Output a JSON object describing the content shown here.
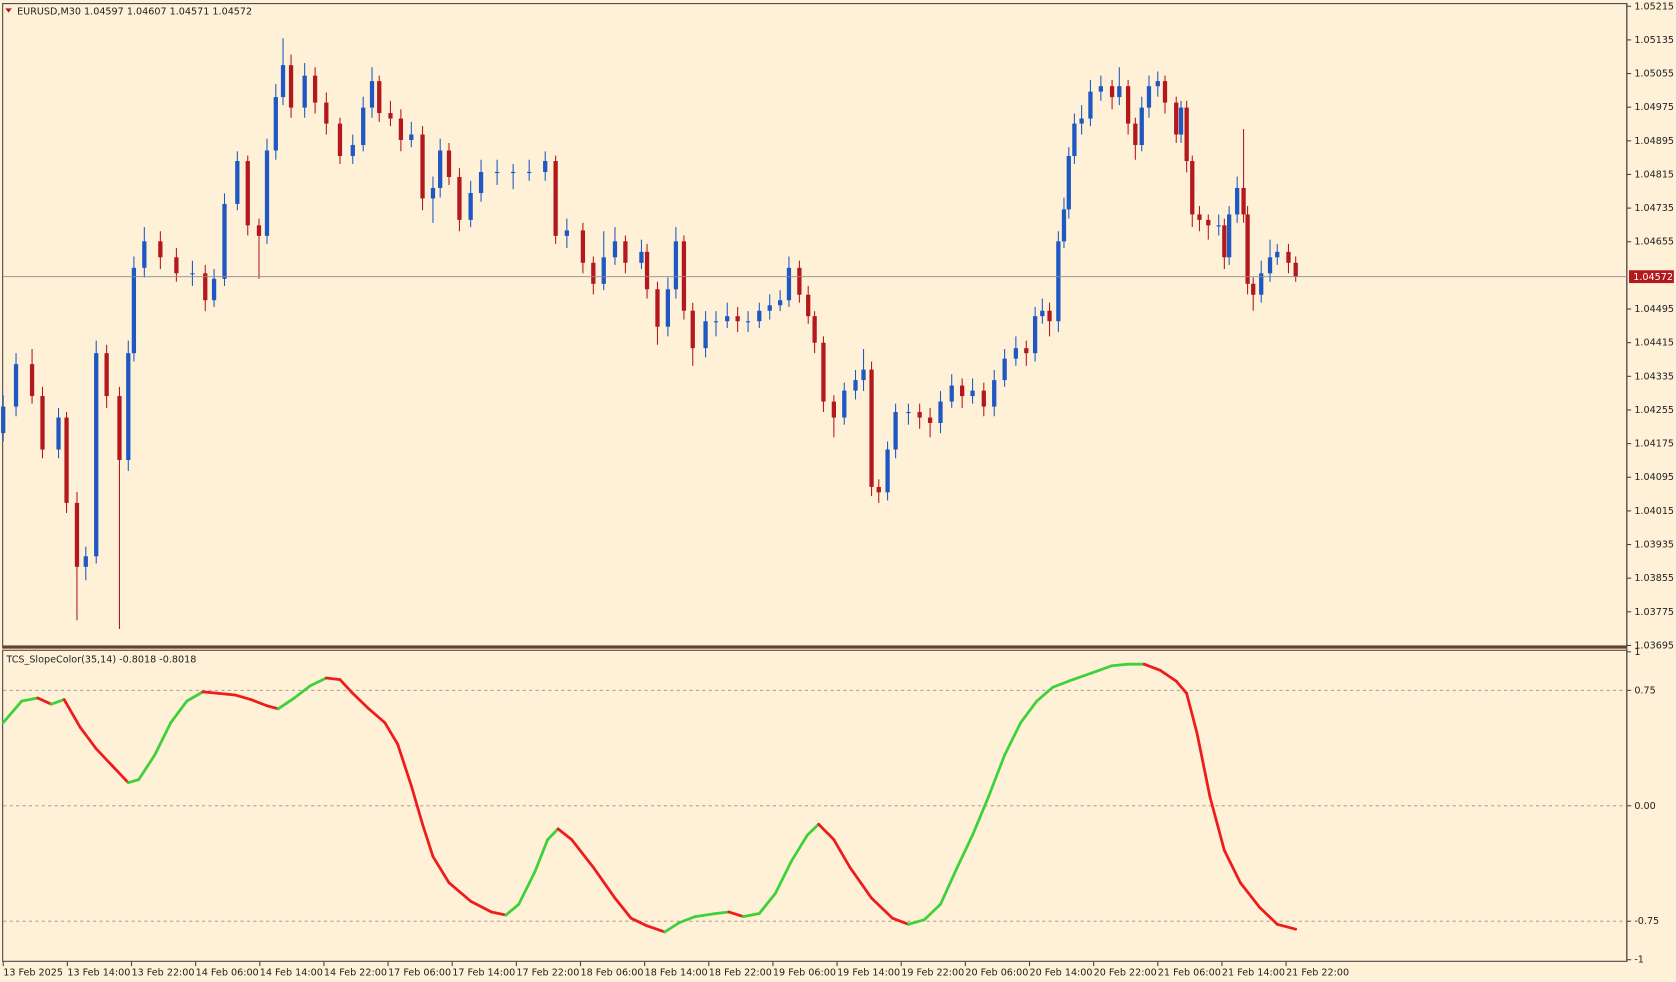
{
  "chart_data": [
    {
      "type": "candlestick",
      "title": "EURUSD,M30  1.04597 1.04607 1.04571 1.04572",
      "up_color": "#1f57c3",
      "down_color": "#b3181d",
      "current_price": 1.04572,
      "xlim": [
        0,
        202.5
      ],
      "xticks": [
        {
          "value": 0,
          "label": "13 Feb 2025"
        },
        {
          "value": 8,
          "label": "13 Feb 14:00"
        },
        {
          "value": 16,
          "label": "13 Feb 22:00"
        },
        {
          "value": 24,
          "label": "14 Feb 06:00"
        },
        {
          "value": 32,
          "label": "14 Feb 14:00"
        },
        {
          "value": 40,
          "label": "14 Feb 22:00"
        },
        {
          "value": 48,
          "label": "17 Feb 06:00"
        },
        {
          "value": 56,
          "label": "17 Feb 14:00"
        },
        {
          "value": 64,
          "label": "17 Feb 22:00"
        },
        {
          "value": 72,
          "label": "18 Feb 06:00"
        },
        {
          "value": 80,
          "label": "18 Feb 14:00"
        },
        {
          "value": 88,
          "label": "18 Feb 22:00"
        },
        {
          "value": 96,
          "label": "19 Feb 06:00"
        },
        {
          "value": 104,
          "label": "19 Feb 14:00"
        },
        {
          "value": 112,
          "label": "19 Feb 22:00"
        },
        {
          "value": 120,
          "label": "20 Feb 06:00"
        },
        {
          "value": 128,
          "label": "20 Feb 14:00"
        },
        {
          "value": 136,
          "label": "20 Feb 22:00"
        },
        {
          "value": 144,
          "label": "21 Feb 06:00"
        },
        {
          "value": 152,
          "label": "21 Feb 14:00"
        },
        {
          "value": 160,
          "label": "21 Feb 22:00"
        }
      ],
      "ylim": [
        1.03695,
        1.05215
      ],
      "yticks": [
        1.05215,
        1.05135,
        1.05055,
        1.04975,
        1.04895,
        1.04815,
        1.04735,
        1.04655,
        1.04495,
        1.04415,
        1.04335,
        1.04255,
        1.04175,
        1.04095,
        1.04015,
        1.03935,
        1.03855,
        1.03775,
        1.03695
      ],
      "x": [
        0,
        1.6,
        3.6,
        4.9,
        6.9,
        7.9,
        9.2,
        10.3,
        11.6,
        12.9,
        14.5,
        15.6,
        16.3,
        17.6,
        19.6,
        21.6,
        23.6,
        25.2,
        26.3,
        27.6,
        29.2,
        30.5,
        31.9,
        32.9,
        34,
        34.9,
        35.9,
        37.6,
        38.9,
        40.3,
        42,
        43.6,
        44.9,
        46,
        46.9,
        48.3,
        49.6,
        50.9,
        52.3,
        53.6,
        54.5,
        55.6,
        56.9,
        58.3,
        59.6,
        61.6,
        63.6,
        65.6,
        67.6,
        68.9,
        70.3,
        72.3,
        73.6,
        74.9,
        76.3,
        77.6,
        79.6,
        80.3,
        81.6,
        82.9,
        83.9,
        84.9,
        86,
        87.6,
        88.9,
        90.3,
        91.6,
        92.9,
        94.3,
        95.6,
        96.9,
        98,
        99.3,
        100.4,
        101.2,
        102.3,
        103.6,
        104.9,
        106.3,
        107.3,
        108.3,
        109.2,
        110.3,
        111.3,
        112.9,
        114.3,
        115.6,
        116.9,
        118.3,
        119.6,
        120.9,
        122.3,
        123.6,
        124.9,
        126.3,
        127.6,
        128.7,
        129.6,
        130.5,
        131.6,
        132.3,
        132.9,
        133.6,
        134.5,
        135.6,
        136.9,
        138.3,
        139.2,
        140.3,
        141.2,
        142,
        142.9,
        144,
        144.9,
        146.3,
        146.9,
        147.6,
        148.3,
        149.2,
        150.3,
        151.6,
        152.3,
        152.9,
        153.9,
        154.7,
        155.2,
        155.9,
        156.9,
        158,
        158.9,
        160.3,
        161.2
      ],
      "ohlc": [
        [
          1.042,
          1.0429,
          1.0418,
          1.04263
        ],
        [
          1.04263,
          1.0439,
          1.0424,
          1.04364
        ],
        [
          1.04364,
          1.044,
          1.0427,
          1.04288
        ],
        [
          1.04288,
          1.0431,
          1.0414,
          1.04161
        ],
        [
          1.04161,
          1.0426,
          1.0414,
          1.04237
        ],
        [
          1.04237,
          1.0425,
          1.0401,
          1.04034
        ],
        [
          1.04034,
          1.0406,
          1.03755,
          1.03882
        ],
        [
          1.03882,
          1.0393,
          1.0385,
          1.03907
        ],
        [
          1.03907,
          1.0442,
          1.0389,
          1.0439
        ],
        [
          1.0439,
          1.0441,
          1.0426,
          1.04288
        ],
        [
          1.04288,
          1.0431,
          1.03734,
          1.04136
        ],
        [
          1.04136,
          1.0442,
          1.0411,
          1.0439
        ],
        [
          1.0439,
          1.0462,
          1.0437,
          1.04593
        ],
        [
          1.04593,
          1.0469,
          1.0457,
          1.04656
        ],
        [
          1.04656,
          1.0468,
          1.0459,
          1.04618
        ],
        [
          1.04618,
          1.0464,
          1.0456,
          1.0458
        ],
        [
          1.0458,
          1.0461,
          1.0455,
          1.0458
        ],
        [
          1.0458,
          1.046,
          1.0449,
          1.04516
        ],
        [
          1.04516,
          1.0459,
          1.045,
          1.04567
        ],
        [
          1.04567,
          1.0477,
          1.0455,
          1.04745
        ],
        [
          1.04745,
          1.0487,
          1.0473,
          1.04847
        ],
        [
          1.04847,
          1.0486,
          1.0467,
          1.04694
        ],
        [
          1.04694,
          1.0471,
          1.04567,
          1.04669
        ],
        [
          1.04669,
          1.049,
          1.0465,
          1.04872
        ],
        [
          1.04872,
          1.0503,
          1.0485,
          1.04999
        ],
        [
          1.04999,
          1.05139,
          1.0498,
          1.05075
        ],
        [
          1.05075,
          1.051,
          1.0495,
          1.04974
        ],
        [
          1.04974,
          1.0508,
          1.0495,
          1.0505
        ],
        [
          1.0505,
          1.0507,
          1.0496,
          1.04986
        ],
        [
          1.04986,
          1.0501,
          1.0491,
          1.04936
        ],
        [
          1.04936,
          1.0495,
          1.0484,
          1.04859
        ],
        [
          1.04859,
          1.0491,
          1.0484,
          1.04885
        ],
        [
          1.04885,
          1.05,
          1.0487,
          1.04974
        ],
        [
          1.04974,
          1.0507,
          1.0495,
          1.05037
        ],
        [
          1.05037,
          1.0505,
          1.0494,
          1.04961
        ],
        [
          1.04961,
          1.0499,
          1.0493,
          1.04948
        ],
        [
          1.04948,
          1.0497,
          1.0487,
          1.04897
        ],
        [
          1.04897,
          1.0494,
          1.0488,
          1.0491
        ],
        [
          1.0491,
          1.0493,
          1.0473,
          1.04758
        ],
        [
          1.04758,
          1.0481,
          1.047,
          1.04783
        ],
        [
          1.04783,
          1.049,
          1.0476,
          1.04872
        ],
        [
          1.04872,
          1.0489,
          1.0479,
          1.04809
        ],
        [
          1.04809,
          1.0483,
          1.0468,
          1.04707
        ],
        [
          1.04707,
          1.048,
          1.0469,
          1.04771
        ],
        [
          1.04771,
          1.0485,
          1.0475,
          1.04821
        ],
        [
          1.04821,
          1.0485,
          1.0479,
          1.04821
        ],
        [
          1.04821,
          1.0484,
          1.0478,
          1.04821
        ],
        [
          1.04821,
          1.0485,
          1.048,
          1.04821
        ],
        [
          1.04821,
          1.0487,
          1.048,
          1.04847
        ],
        [
          1.04847,
          1.0486,
          1.0465,
          1.04669
        ],
        [
          1.04669,
          1.0471,
          1.0464,
          1.04682
        ],
        [
          1.04682,
          1.047,
          1.0458,
          1.04605
        ],
        [
          1.04605,
          1.0462,
          1.0453,
          1.04555
        ],
        [
          1.04555,
          1.0468,
          1.0454,
          1.04618
        ],
        [
          1.04618,
          1.0469,
          1.046,
          1.04656
        ],
        [
          1.04656,
          1.0467,
          1.0458,
          1.04605
        ],
        [
          1.04605,
          1.0466,
          1.0459,
          1.04631
        ],
        [
          1.04631,
          1.0465,
          1.0452,
          1.04542
        ],
        [
          1.04542,
          1.0456,
          1.0441,
          1.04453
        ],
        [
          1.04453,
          1.0457,
          1.0443,
          1.04542
        ],
        [
          1.04542,
          1.0469,
          1.0452,
          1.04656
        ],
        [
          1.04656,
          1.0467,
          1.0447,
          1.04491
        ],
        [
          1.04491,
          1.0451,
          1.0436,
          1.04402
        ],
        [
          1.04402,
          1.0449,
          1.0438,
          1.04466
        ],
        [
          1.04466,
          1.0449,
          1.0443,
          1.04466
        ],
        [
          1.04466,
          1.0451,
          1.0445,
          1.04478
        ],
        [
          1.04478,
          1.045,
          1.0444,
          1.04466
        ],
        [
          1.04466,
          1.0449,
          1.0444,
          1.04466
        ],
        [
          1.04466,
          1.0451,
          1.0445,
          1.04491
        ],
        [
          1.04491,
          1.0453,
          1.0447,
          1.04504
        ],
        [
          1.04504,
          1.0454,
          1.0449,
          1.04516
        ],
        [
          1.04516,
          1.0462,
          1.045,
          1.04593
        ],
        [
          1.04593,
          1.0461,
          1.0451,
          1.04529
        ],
        [
          1.04529,
          1.0455,
          1.0446,
          1.04478
        ],
        [
          1.04478,
          1.0449,
          1.0439,
          1.04415
        ],
        [
          1.04415,
          1.0443,
          1.0425,
          1.04275
        ],
        [
          1.04275,
          1.0429,
          1.0419,
          1.04237
        ],
        [
          1.04237,
          1.0432,
          1.0422,
          1.04301
        ],
        [
          1.04301,
          1.0435,
          1.0428,
          1.04326
        ],
        [
          1.04326,
          1.044,
          1.043,
          1.04351
        ],
        [
          1.04351,
          1.0437,
          1.0405,
          1.04072
        ],
        [
          1.04072,
          1.0409,
          1.04034,
          1.04059
        ],
        [
          1.04059,
          1.0418,
          1.0404,
          1.04161
        ],
        [
          1.04161,
          1.0427,
          1.0414,
          1.0425
        ],
        [
          1.0425,
          1.0427,
          1.0422,
          1.0425
        ],
        [
          1.0425,
          1.0427,
          1.0421,
          1.04237
        ],
        [
          1.04237,
          1.0426,
          1.0419,
          1.04224
        ],
        [
          1.04224,
          1.043,
          1.042,
          1.04275
        ],
        [
          1.04275,
          1.0434,
          1.0426,
          1.04313
        ],
        [
          1.04313,
          1.0433,
          1.0426,
          1.04288
        ],
        [
          1.04288,
          1.0433,
          1.0427,
          1.04301
        ],
        [
          1.04301,
          1.0432,
          1.0424,
          1.04263
        ],
        [
          1.04263,
          1.0435,
          1.0424,
          1.04326
        ],
        [
          1.04326,
          1.044,
          1.0431,
          1.04377
        ],
        [
          1.04377,
          1.0443,
          1.0436,
          1.04402
        ],
        [
          1.04402,
          1.0442,
          1.0436,
          1.0439
        ],
        [
          1.0439,
          1.045,
          1.0437,
          1.04478
        ],
        [
          1.04478,
          1.0452,
          1.0446,
          1.04491
        ],
        [
          1.04491,
          1.0451,
          1.0443,
          1.04466
        ],
        [
          1.04466,
          1.0468,
          1.0444,
          1.04656
        ],
        [
          1.04656,
          1.0476,
          1.0464,
          1.04732
        ],
        [
          1.04732,
          1.0488,
          1.0471,
          1.04859
        ],
        [
          1.04859,
          1.0496,
          1.0484,
          1.04936
        ],
        [
          1.04936,
          1.0498,
          1.0491,
          1.04948
        ],
        [
          1.04948,
          1.0504,
          1.0493,
          1.05012
        ],
        [
          1.05012,
          1.0505,
          1.0499,
          1.05025
        ],
        [
          1.05025,
          1.0504,
          1.0497,
          1.04999
        ],
        [
          1.04999,
          1.0507,
          1.0498,
          1.05025
        ],
        [
          1.05025,
          1.0504,
          1.0491,
          1.04936
        ],
        [
          1.04936,
          1.0495,
          1.0485,
          1.04885
        ],
        [
          1.04885,
          1.05,
          1.0487,
          1.04974
        ],
        [
          1.04974,
          1.0505,
          1.0495,
          1.05025
        ],
        [
          1.05025,
          1.0506,
          1.05,
          1.05037
        ],
        [
          1.05037,
          1.0505,
          1.0496,
          1.04986
        ],
        [
          1.04986,
          1.05,
          1.0489,
          1.0491
        ],
        [
          1.0491,
          1.0499,
          1.0489,
          1.04974
        ],
        [
          1.04974,
          1.0499,
          1.0482,
          1.04847
        ],
        [
          1.04847,
          1.0486,
          1.0469,
          1.0472
        ],
        [
          1.0472,
          1.0474,
          1.0468,
          1.04707
        ],
        [
          1.04707,
          1.0472,
          1.0466,
          1.04694
        ],
        [
          1.04694,
          1.0472,
          1.0467,
          1.04694
        ],
        [
          1.04694,
          1.0471,
          1.0459,
          1.04618
        ],
        [
          1.04618,
          1.0474,
          1.046,
          1.0472
        ],
        [
          1.0472,
          1.0481,
          1.047,
          1.04783
        ],
        [
          1.04783,
          1.04923,
          1.047,
          1.0472
        ],
        [
          1.0472,
          1.0474,
          1.0453,
          1.04555
        ],
        [
          1.04555,
          1.0457,
          1.04491,
          1.04529
        ],
        [
          1.04529,
          1.0461,
          1.0451,
          1.0458
        ],
        [
          1.0458,
          1.0466,
          1.0456,
          1.04618
        ],
        [
          1.04618,
          1.0465,
          1.046,
          1.04631
        ],
        [
          1.04631,
          1.0465,
          1.0458,
          1.04605
        ],
        [
          1.04605,
          1.0462,
          1.0456,
          1.04572
        ]
      ]
    },
    {
      "type": "line",
      "title": "TCS_SlopeColor(35,14) -0.8018 -0.8018",
      "up_color": "#3fd13a",
      "down_color": "#ee1c1c",
      "ylim": [
        -1,
        1
      ],
      "yticks": [
        1,
        0.75,
        {
          "value": 0,
          "label": "0.00"
        },
        -0.75,
        -1
      ],
      "levels": [
        0.75,
        0,
        -0.75
      ],
      "x": [
        0,
        2.3,
        4.3,
        6,
        7.6,
        9.6,
        11.6,
        13.6,
        15.6,
        16.9,
        18.9,
        20.9,
        22.9,
        24.9,
        26.9,
        28.9,
        30.9,
        32.9,
        34.3,
        36.3,
        38.3,
        40.3,
        42,
        43.6,
        45.6,
        47.6,
        49.2,
        50.9,
        52.3,
        53.6,
        55.6,
        58.3,
        60.9,
        62.7,
        64.3,
        66.3,
        67.9,
        69.2,
        70.9,
        73.6,
        76.3,
        78.3,
        80.3,
        82.5,
        84.3,
        86.3,
        88.9,
        90.5,
        92.3,
        94.3,
        96.3,
        98.3,
        100.3,
        101.7,
        103.6,
        105.6,
        108.3,
        110.9,
        112.9,
        114.9,
        116.9,
        118.9,
        120.9,
        122.9,
        124.9,
        126.9,
        128.9,
        130.9,
        132.9,
        135.6,
        138.3,
        140.3,
        142.3,
        144.3,
        146.3,
        147.6,
        148.9,
        150.5,
        152.3,
        154.3,
        156.7,
        158.9,
        161.2
      ],
      "values": [
        0.54,
        0.68,
        0.7,
        0.66,
        0.69,
        0.51,
        0.37,
        0.26,
        0.15,
        0.17,
        0.33,
        0.54,
        0.68,
        0.74,
        0.73,
        0.72,
        0.69,
        0.65,
        0.63,
        0.7,
        0.78,
        0.83,
        0.82,
        0.73,
        0.63,
        0.54,
        0.4,
        0.13,
        -0.12,
        -0.33,
        -0.5,
        -0.62,
        -0.69,
        -0.71,
        -0.64,
        -0.43,
        -0.22,
        -0.15,
        -0.22,
        -0.4,
        -0.6,
        -0.73,
        -0.78,
        -0.82,
        -0.76,
        -0.72,
        -0.7,
        -0.69,
        -0.72,
        -0.7,
        -0.57,
        -0.36,
        -0.19,
        -0.12,
        -0.22,
        -0.4,
        -0.6,
        -0.73,
        -0.77,
        -0.74,
        -0.64,
        -0.41,
        -0.19,
        0.06,
        0.33,
        0.54,
        0.68,
        0.77,
        0.81,
        0.86,
        0.91,
        0.92,
        0.92,
        0.88,
        0.81,
        0.73,
        0.47,
        0.06,
        -0.29,
        -0.5,
        -0.66,
        -0.77,
        -0.8018
      ]
    }
  ]
}
